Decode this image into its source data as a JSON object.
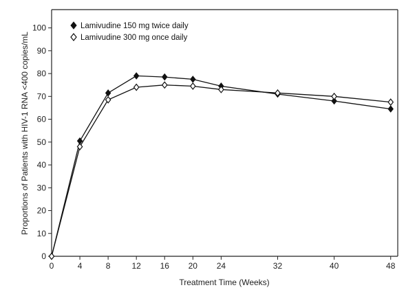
{
  "chart_data": {
    "type": "line",
    "xlabel": "Treatment Time (Weeks)",
    "ylabel": "Proportions of Patients with HIV-1 RNA <400 copies/mL",
    "x": [
      0,
      4,
      8,
      12,
      16,
      20,
      24,
      32,
      40,
      48
    ],
    "xlim": [
      0,
      49
    ],
    "ylim": [
      0,
      108
    ],
    "xticks": [
      0,
      4,
      8,
      12,
      16,
      20,
      24,
      32,
      40,
      48
    ],
    "yticks": [
      0,
      10,
      20,
      30,
      40,
      50,
      60,
      70,
      80,
      90,
      100
    ],
    "legend_position": "top-left",
    "grid": false,
    "series": [
      {
        "name": "Lamivudine 150 mg twice daily",
        "marker": "filled-diamond",
        "color": "#111111",
        "values": [
          0,
          50.5,
          71.5,
          79,
          78.5,
          77.5,
          74.5,
          71,
          68,
          64.5
        ]
      },
      {
        "name": "Lamivudine 300 mg once daily",
        "marker": "open-diamond",
        "color": "#111111",
        "values": [
          0,
          48,
          68.5,
          74,
          75,
          74.5,
          73,
          71.5,
          70,
          67.5
        ]
      }
    ]
  }
}
